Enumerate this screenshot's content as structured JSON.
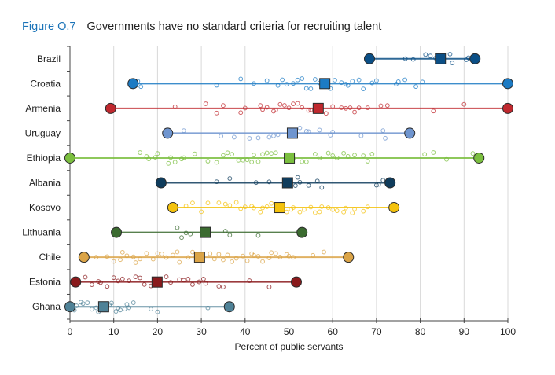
{
  "figure": {
    "number": "Figure O.7",
    "title": "Governments have no standard criteria for recruiting talent"
  },
  "chart_data": {
    "type": "scatter",
    "subtype": "range-dot-strip",
    "title": "Governments have no standard criteria for recruiting talent",
    "xlabel": "Percent of public servants",
    "ylabel": "",
    "xlim": [
      0,
      100
    ],
    "xticks": [
      0,
      10,
      20,
      30,
      40,
      50,
      60,
      70,
      80,
      90,
      100
    ],
    "grid": "vertical",
    "legend": "none",
    "marker_meaning": {
      "circle_large": "minimum / maximum across institutions",
      "square": "country average",
      "circle_small_open": "individual institution values"
    },
    "series": [
      {
        "name": "Brazil",
        "color": "#0b4f86",
        "min": 68.4,
        "max": 92.5,
        "mean": 84.6,
        "points": [
          76.6,
          78.4,
          81.2,
          82.3,
          83.5,
          85.0,
          86.8,
          87.3,
          90.5,
          91.0
        ]
      },
      {
        "name": "Croatia",
        "color": "#1c7bc4",
        "min": 14.4,
        "max": 100,
        "mean": 58.2,
        "points": [
          15.5,
          16.2,
          33.5,
          39,
          42,
          45,
          47.5,
          48.5,
          49.5,
          51,
          52,
          53,
          54,
          55,
          56,
          57,
          59.5,
          60.5,
          62,
          63,
          63.5,
          64.5,
          66,
          67,
          69,
          70,
          74.5,
          75,
          76.5,
          79,
          80.5
        ]
      },
      {
        "name": "Armenia",
        "color": "#c0282e",
        "min": 9.3,
        "max": 100,
        "mean": 56.7,
        "points": [
          24,
          31,
          33.5,
          35,
          39,
          40,
          43.5,
          44,
          45,
          46.5,
          47,
          48,
          49,
          50,
          51,
          52,
          53,
          54.5,
          55,
          58.5,
          60,
          62,
          63,
          64,
          65,
          66,
          68,
          71,
          72.5,
          83,
          90
        ]
      },
      {
        "name": "Uruguay",
        "color": "#6f95cf",
        "min": 22.3,
        "max": 77.6,
        "mean": 50.8,
        "points": [
          26,
          34.5,
          37.5,
          41,
          43,
          45.5,
          46.5,
          47.5,
          51,
          52.5,
          54,
          54.5,
          57,
          60,
          59.5,
          66.5,
          71.5,
          72
        ]
      },
      {
        "name": "Ethiopia",
        "color": "#7bbf3f",
        "min": 0,
        "max": 93.4,
        "mean": 50.1,
        "points": [
          16,
          17.5,
          18,
          19.5,
          20,
          22.5,
          23,
          24,
          25.5,
          26,
          28.5,
          31.5,
          33.5,
          35,
          36,
          37,
          38.5,
          39.5,
          40.5,
          41.5,
          42,
          43,
          44,
          45,
          46,
          47,
          51,
          53,
          54,
          56,
          57,
          59,
          60,
          61,
          62.5,
          63.5,
          65,
          67,
          68,
          69,
          81,
          83,
          86,
          92
        ]
      },
      {
        "name": "Albania",
        "color": "#0f3c5c",
        "min": 20.8,
        "max": 73.1,
        "mean": 49.7,
        "points": [
          33.5,
          36.5,
          42.5,
          45.5,
          52,
          51.5,
          52.5,
          54.5,
          56.5,
          57.5,
          70,
          70.5,
          71.5
        ]
      },
      {
        "name": "Kosovo",
        "color": "#f4c20d",
        "min": 23.5,
        "max": 74.0,
        "mean": 47.9,
        "points": [
          26.5,
          28,
          30,
          31.5,
          34,
          35.5,
          36.5,
          38,
          39,
          40,
          41.5,
          42,
          43.5,
          44,
          45,
          46,
          49.5,
          50.5,
          51,
          52.5,
          53.5,
          55,
          56,
          57,
          57.5,
          59,
          60,
          61,
          62.5,
          63,
          64.5,
          65,
          67,
          68
        ]
      },
      {
        "name": "Lithuania",
        "color": "#3b6b30",
        "min": 10.6,
        "max": 53.0,
        "mean": 30.9,
        "points": [
          24.5,
          25.5,
          26.5,
          27.5,
          35.5,
          36.5,
          43
        ]
      },
      {
        "name": "Chile",
        "color": "#dba447",
        "min": 3.2,
        "max": 63.6,
        "mean": 29.6,
        "points": [
          6,
          8.5,
          10,
          11.5,
          12,
          13,
          14.5,
          15,
          16,
          17.5,
          19,
          20,
          21,
          22,
          23.5,
          24.5,
          25,
          27,
          28,
          29,
          32,
          33,
          34,
          35,
          36,
          37,
          38,
          39.5,
          40.5,
          41.5,
          42,
          43,
          44,
          45.5,
          46,
          47,
          48,
          49.5,
          50,
          51,
          55.5,
          58
        ]
      },
      {
        "name": "Estonia",
        "color": "#8a1a1c",
        "min": 1.3,
        "max": 51.7,
        "mean": 19.9,
        "points": [
          3.5,
          5,
          6.5,
          7,
          8.5,
          10,
          11,
          12,
          13.5,
          15,
          16,
          17,
          18.5,
          22,
          23,
          25,
          26,
          27,
          28,
          29.5,
          30.5,
          31,
          34,
          35,
          41,
          45.5
        ]
      },
      {
        "name": "Ghana",
        "color": "#4f8297",
        "min": 0,
        "max": 36.4,
        "mean": 7.7,
        "points": [
          1,
          1.5,
          2.5,
          3,
          4,
          5,
          6,
          6.5,
          7,
          8.5,
          9,
          9.5,
          10.5,
          11,
          11.5,
          12.5,
          13,
          13.5,
          14.5,
          18.5,
          20,
          31.5
        ]
      }
    ]
  }
}
